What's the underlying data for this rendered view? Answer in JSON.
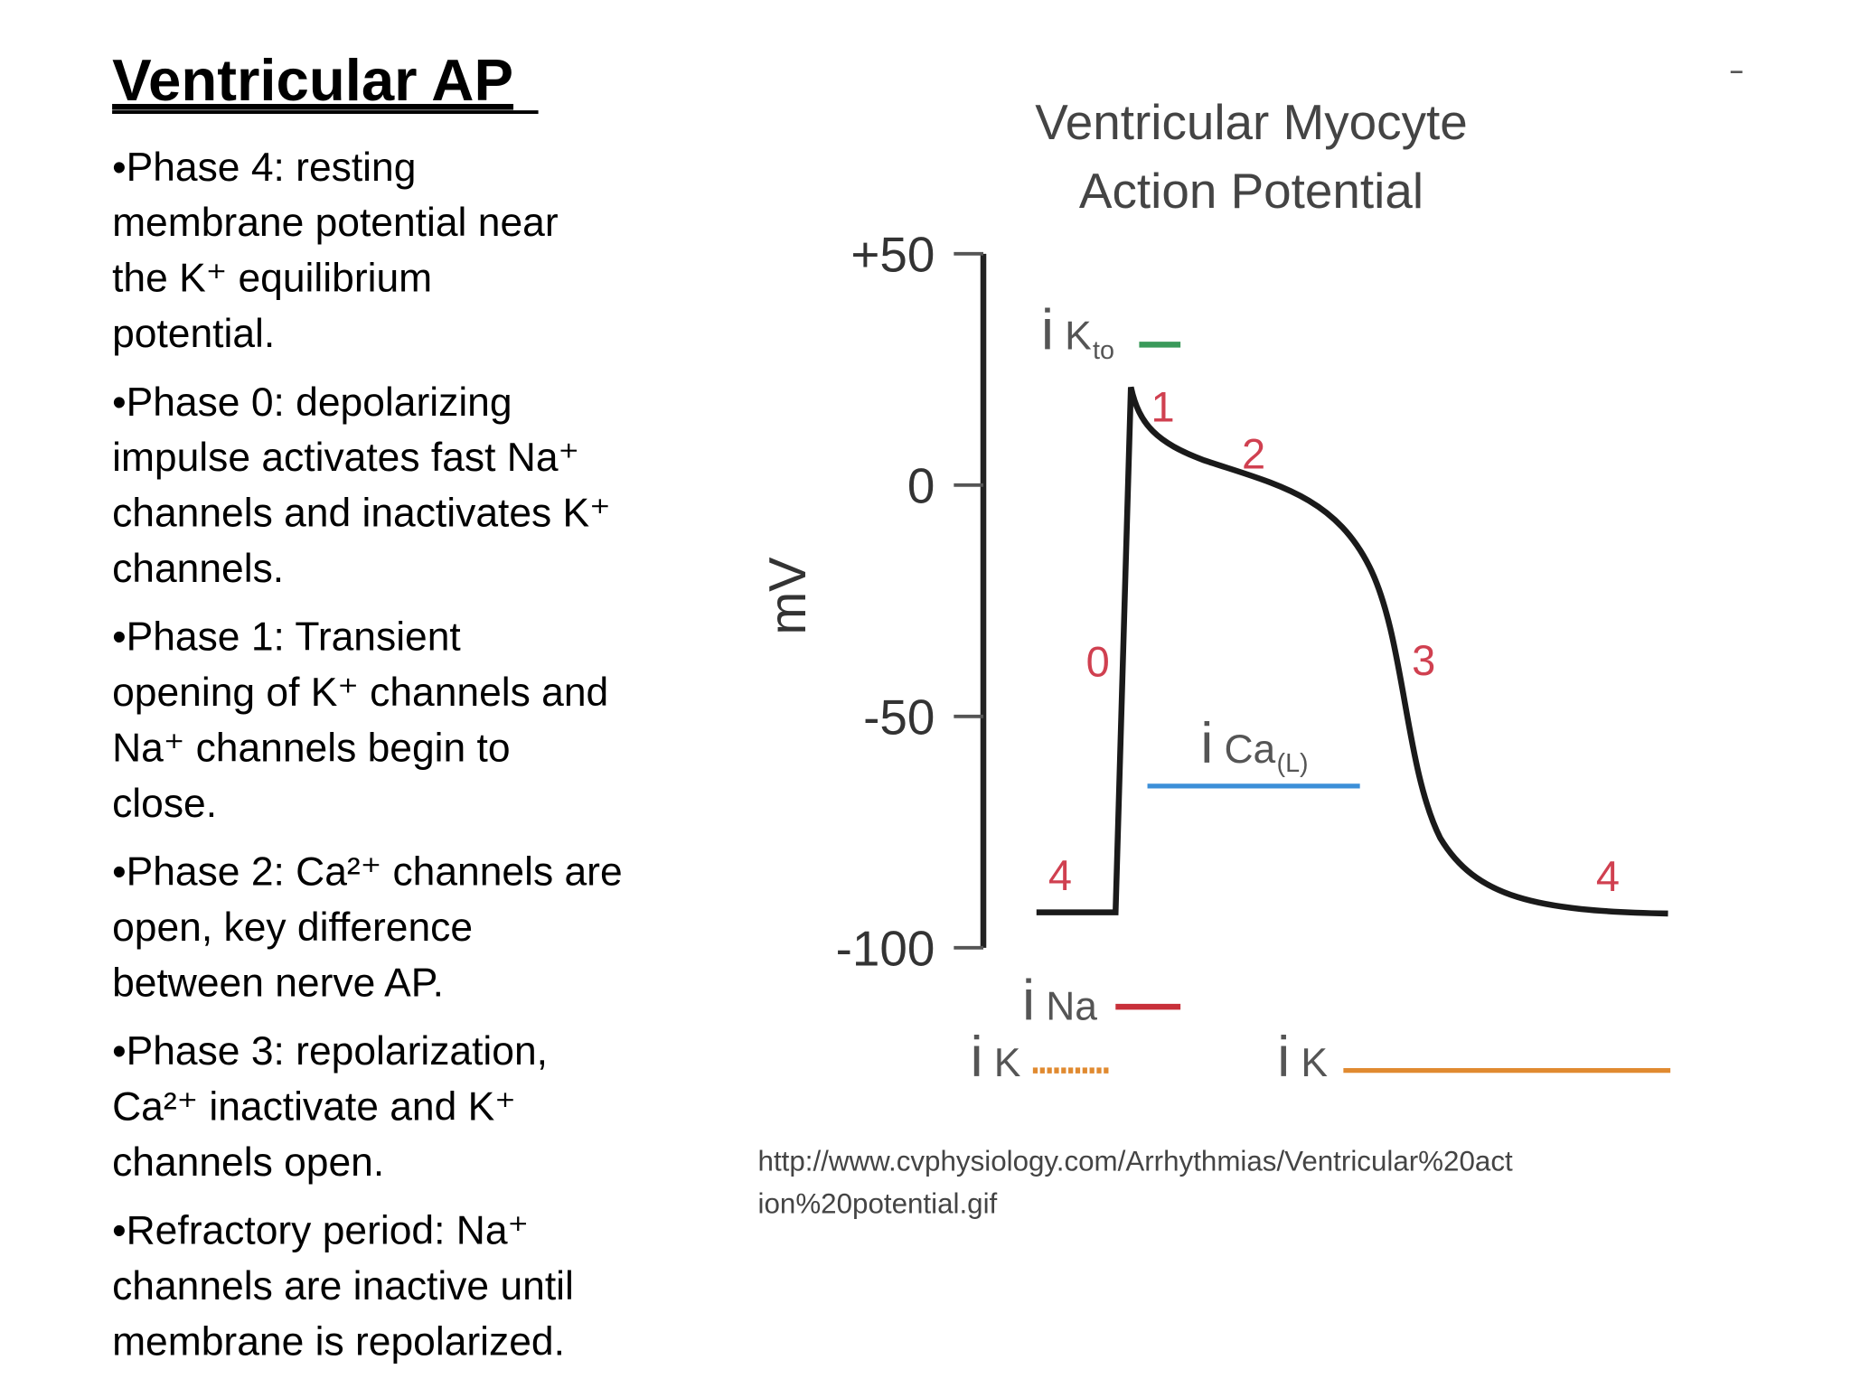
{
  "header": {
    "title": "Ventricular AP"
  },
  "bullets": [
    [
      "•Phase 4: resting",
      "membrane potential near",
      "the K⁺ equilibrium",
      "potential."
    ],
    [
      "•Phase 0: depolarizing",
      "impulse activates fast Na⁺",
      "channels and inactivates K⁺",
      "channels."
    ],
    [
      "•Phase 1: Transient",
      "opening of K⁺ channels and",
      "Na⁺ channels begin to",
      "close."
    ],
    [
      "•Phase 2: Ca²⁺ channels are",
      "open, key difference",
      "between nerve AP."
    ],
    [
      "•Phase 3: repolarization,",
      "Ca²⁺ inactivate and K⁺",
      "channels open."
    ],
    [
      "•Refractory period: Na⁺",
      "channels are inactive until",
      "membrane is repolarized."
    ]
  ],
  "figure": {
    "title": [
      "Ventricular Myocyte",
      "Action Potential"
    ],
    "y_label": "mV",
    "ylim": [
      -100,
      50
    ],
    "yticks": [
      {
        "value": 50,
        "label": "+50"
      },
      0,
      -50,
      -100
    ],
    "phases": [
      "1",
      "2",
      "0",
      "3",
      "4",
      "4"
    ],
    "currents": [
      {
        "symbol": "i",
        "ion": "K",
        "sub": "to"
      },
      {
        "symbol": "i",
        "ion": "Ca",
        "sub": "(L)"
      },
      {
        "symbol": "i",
        "ion": "Na"
      },
      {
        "symbol": "i",
        "ion": "K"
      },
      {
        "symbol": "i",
        "ion": "K"
      }
    ],
    "source": [
      "http://www.cvphysiology.com/Arrhythmias/Ventricular%20act",
      "ion%20potential.gif"
    ]
  }
}
